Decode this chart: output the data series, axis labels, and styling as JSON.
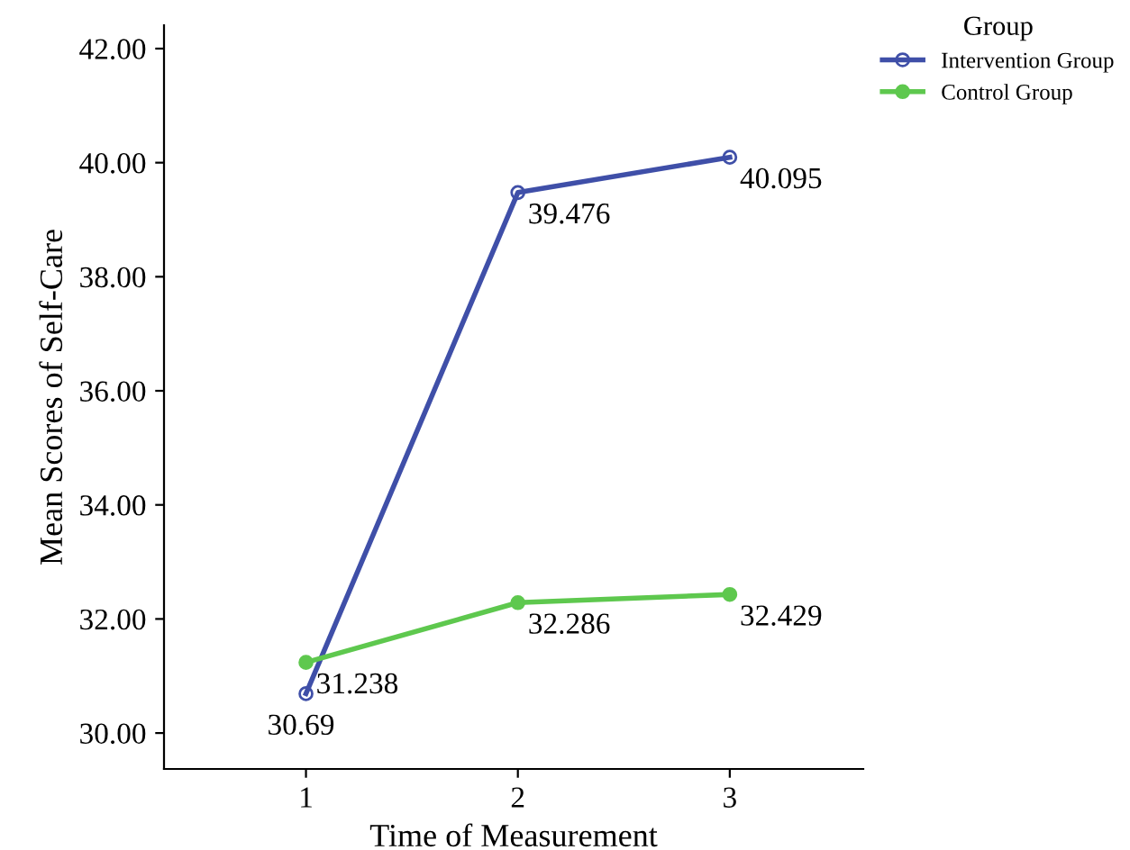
{
  "chart_data": {
    "type": "line",
    "xlabel": "Time of Measurement",
    "ylabel": "Mean Scores of Self-Care",
    "legend_title": "Group",
    "x": [
      1,
      2,
      3
    ],
    "series": [
      {
        "name": "Intervention Group",
        "color": "#3f4fa8",
        "values": [
          30.69,
          39.476,
          40.095
        ]
      },
      {
        "name": "Control Group",
        "color": "#5ec84e",
        "values": [
          31.238,
          32.286,
          32.429
        ]
      }
    ],
    "xlim": [
      0.33,
      3.63
    ],
    "xticks": [
      1,
      2,
      3
    ],
    "ylim": [
      29.37,
      42.41
    ],
    "yticks": [
      {
        "value": 30,
        "label": "30.00"
      },
      {
        "value": 32,
        "label": "32.00"
      },
      {
        "value": 34,
        "label": "34.00"
      },
      {
        "value": 36,
        "label": "36.00"
      },
      {
        "value": 38,
        "label": "38.00"
      },
      {
        "value": 40,
        "label": "40.00"
      },
      {
        "value": 42,
        "label": "42.00"
      }
    ],
    "grid": false,
    "legend": "top right",
    "marker": "circle",
    "line_style": "solid",
    "data_labels": true
  }
}
